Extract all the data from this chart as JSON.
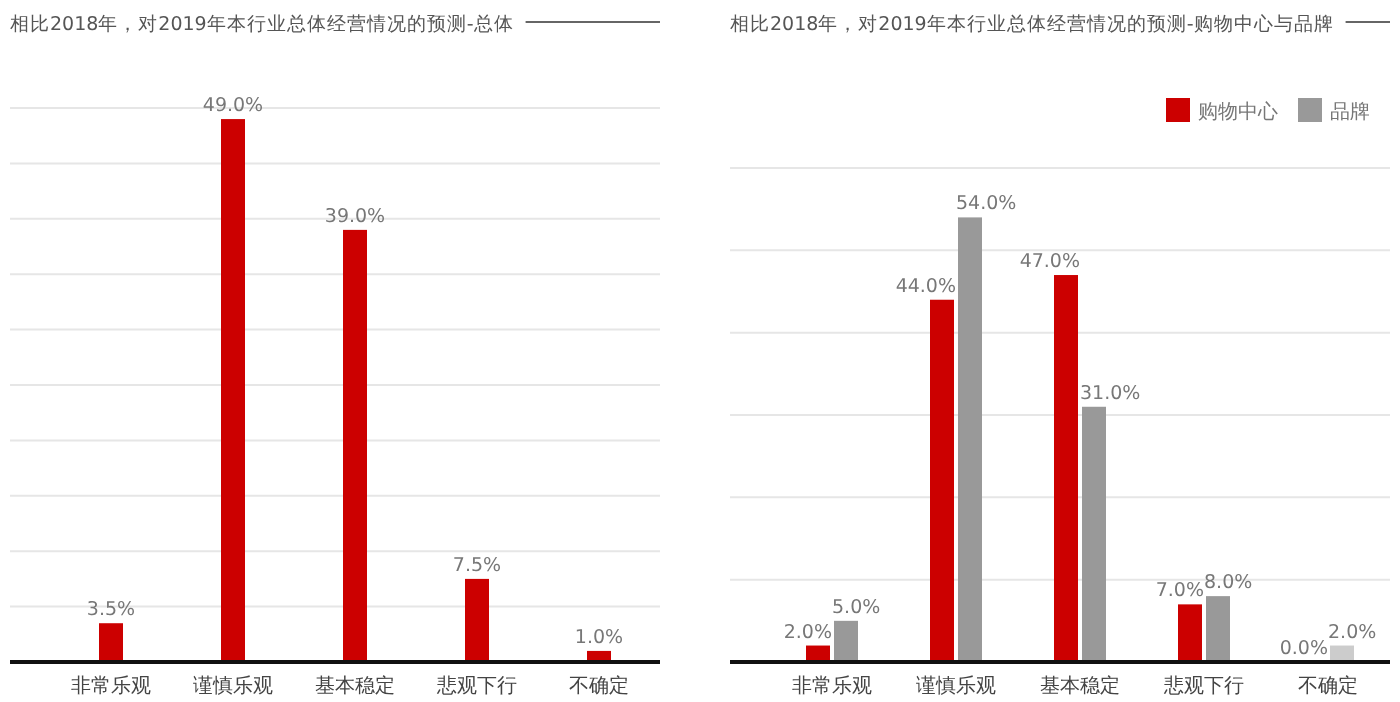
{
  "chart_data": [
    {
      "type": "bar",
      "title": "相比2018年，对2019年本行业总体经营情况的预测-总体",
      "categories": [
        "非常乐观",
        "谨慎乐观",
        "基本稳定",
        "悲观下行",
        "不确定"
      ],
      "series": [
        {
          "color": "#cc0000",
          "values": [
            3.5,
            49.0,
            39.0,
            7.5,
            1.0
          ],
          "value_labels": [
            "3.5%",
            "49.0%",
            "39.0%",
            "7.5%",
            "1.0%"
          ]
        }
      ],
      "tick_labels": "x",
      "grid": "y",
      "legend": false
    },
    {
      "type": "bar",
      "title": "相比2018年，对2019年本行业总体经营情况的预测-购物中心与品牌",
      "categories": [
        "非常乐观",
        "谨慎乐观",
        "基本稳定",
        "悲观下行",
        "不确定"
      ],
      "series": [
        {
          "name": "购物中心",
          "color": "#cc0000",
          "values": [
            2.0,
            44.0,
            47.0,
            7.0,
            0.0
          ],
          "value_labels": [
            "2.0%",
            "44.0%",
            "47.0%",
            "7.0%",
            "0.0%"
          ]
        },
        {
          "name": "品牌",
          "color": "#999999",
          "colors": [
            "#999999",
            "#999999",
            "#999999",
            "#999999",
            "#cccccc"
          ],
          "values": [
            5.0,
            54.0,
            31.0,
            8.0,
            2.0
          ],
          "value_labels": [
            "5.0%",
            "54.0%",
            "31.0%",
            "8.0%",
            "2.0%"
          ]
        }
      ],
      "tick_labels": "x",
      "grid": "y",
      "legend": "top right"
    }
  ]
}
